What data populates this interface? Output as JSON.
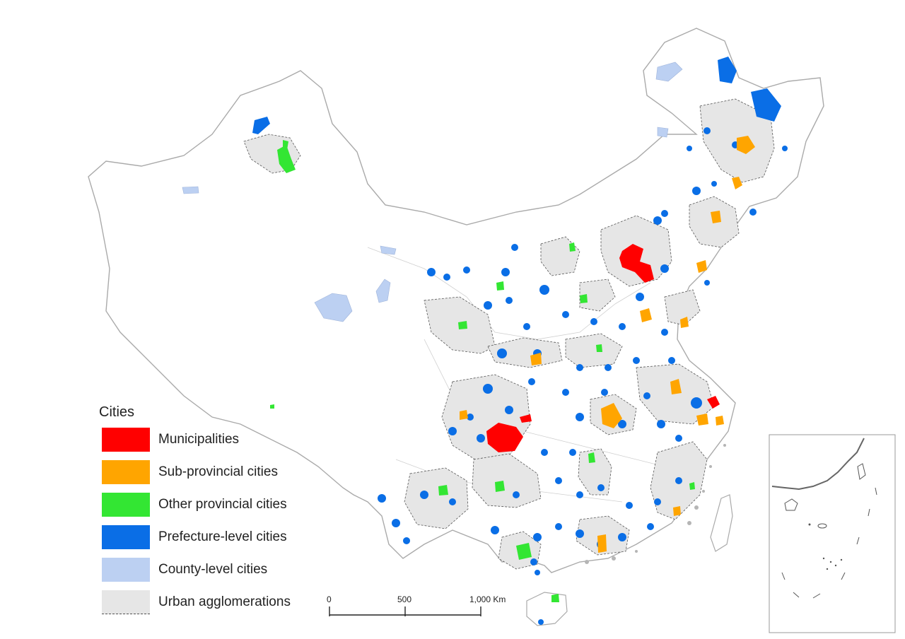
{
  "legend": {
    "title": "Cities",
    "items": [
      {
        "label": "Municipalities",
        "color": "#ff0000"
      },
      {
        "label": "Sub-provincial cities",
        "color": "#ffa500"
      },
      {
        "label": "Other provincial cities",
        "color": "#33e633"
      },
      {
        "label": "Prefecture-level cities",
        "color": "#0a6ee6"
      },
      {
        "label": "County-level cities",
        "color": "#bcd0f2"
      },
      {
        "label": "Urban agglomerations",
        "color": "#e6e6e6"
      }
    ]
  },
  "scale_bar": {
    "ticks": [
      "0",
      "500",
      "1,000 Km"
    ]
  },
  "colors": {
    "border": "#aaaaaa",
    "agglomeration": "#e6e6e6",
    "inset_frame": "#999999"
  }
}
